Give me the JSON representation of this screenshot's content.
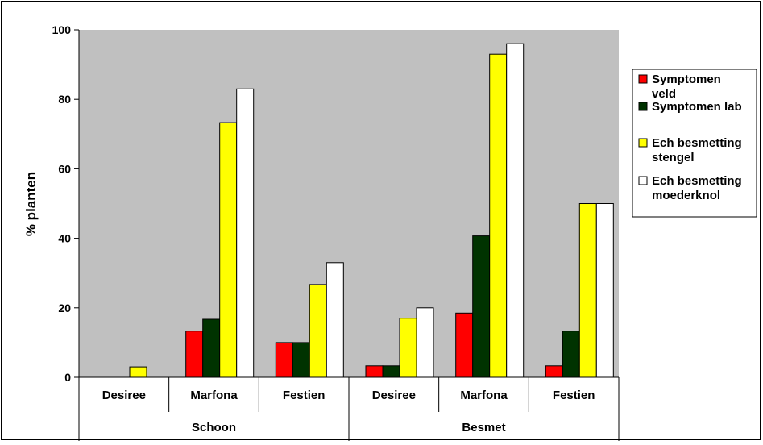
{
  "chart_data": {
    "type": "bar",
    "title": "",
    "ylabel": "% planten",
    "xlabel": "",
    "ylim": [
      0,
      100
    ],
    "yticks": [
      0,
      20,
      40,
      60,
      80,
      100
    ],
    "grid": false,
    "legend_position": "right",
    "plot_background": "#c0c0c0",
    "groups": [
      {
        "label": "Schoon",
        "categories": [
          "Desiree",
          "Marfona",
          "Festien"
        ]
      },
      {
        "label": "Besmet",
        "categories": [
          "Desiree",
          "Marfona",
          "Festien"
        ]
      }
    ],
    "categories": [
      "Desiree",
      "Marfona",
      "Festien",
      "Desiree",
      "Marfona",
      "Festien"
    ],
    "series": [
      {
        "name": "Symptomen veld",
        "legend_lines": [
          "Symptomen",
          "veld"
        ],
        "color": "#ff0000",
        "values": [
          0,
          13.3,
          10,
          3.3,
          18.5,
          3.3
        ]
      },
      {
        "name": "Symptomen lab",
        "legend_lines": [
          "Symptomen lab"
        ],
        "color": "#003300",
        "values": [
          0,
          16.7,
          10,
          3.3,
          40.7,
          13.3
        ]
      },
      {
        "name": "Ech besmetting stengel",
        "legend_lines": [
          "Ech besmetting",
          "stengel"
        ],
        "color": "#ffff00",
        "values": [
          3,
          73.3,
          26.7,
          17,
          93,
          50
        ]
      },
      {
        "name": "Ech besmetting moederknol",
        "legend_lines": [
          "Ech besmetting",
          "moederknol"
        ],
        "color": "#ffffff",
        "values": [
          0,
          83,
          33,
          20,
          96,
          50
        ]
      }
    ]
  }
}
